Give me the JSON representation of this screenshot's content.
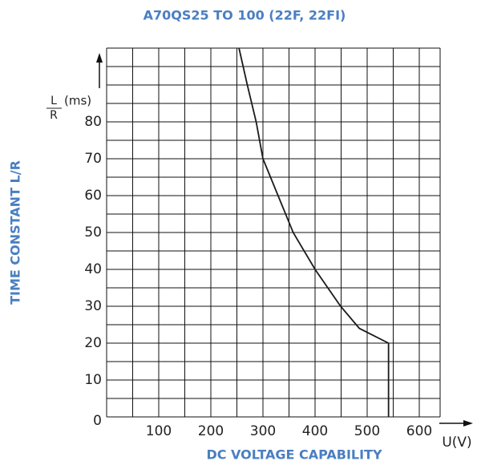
{
  "chart_data": {
    "type": "line",
    "title": "A70QS25 TO 100 (22F, 22FI)",
    "y_label": "TIME CONSTANT L/R",
    "x_label": "DC VOLTAGE CAPABILITY",
    "x_unit": "U(V)",
    "y_unit_num": "L",
    "y_unit_den": "R",
    "y_unit": "(ms)",
    "x": [
      254,
      270,
      287,
      300,
      329,
      358,
      400,
      449,
      485,
      541,
      541
    ],
    "values": [
      100,
      90,
      80,
      70,
      60,
      50,
      40,
      30,
      24,
      20,
      0
    ],
    "color": "#1a1a1a",
    "label_color": "#4a7fc1",
    "xlim": [
      0,
      640
    ],
    "ylim": [
      0,
      100
    ],
    "xticks": [
      0,
      100,
      200,
      300,
      400,
      500,
      600
    ],
    "yticks": [
      0,
      10,
      20,
      30,
      40,
      50,
      60,
      70,
      80
    ],
    "xgrid": [
      0,
      50,
      100,
      150,
      200,
      250,
      300,
      350,
      400,
      450,
      500,
      550,
      600,
      640
    ],
    "ygrid": [
      0,
      5,
      10,
      15,
      20,
      25,
      30,
      35,
      40,
      45,
      50,
      55,
      60,
      65,
      70,
      75,
      80,
      85,
      90,
      95,
      100
    ],
    "grid": true
  }
}
